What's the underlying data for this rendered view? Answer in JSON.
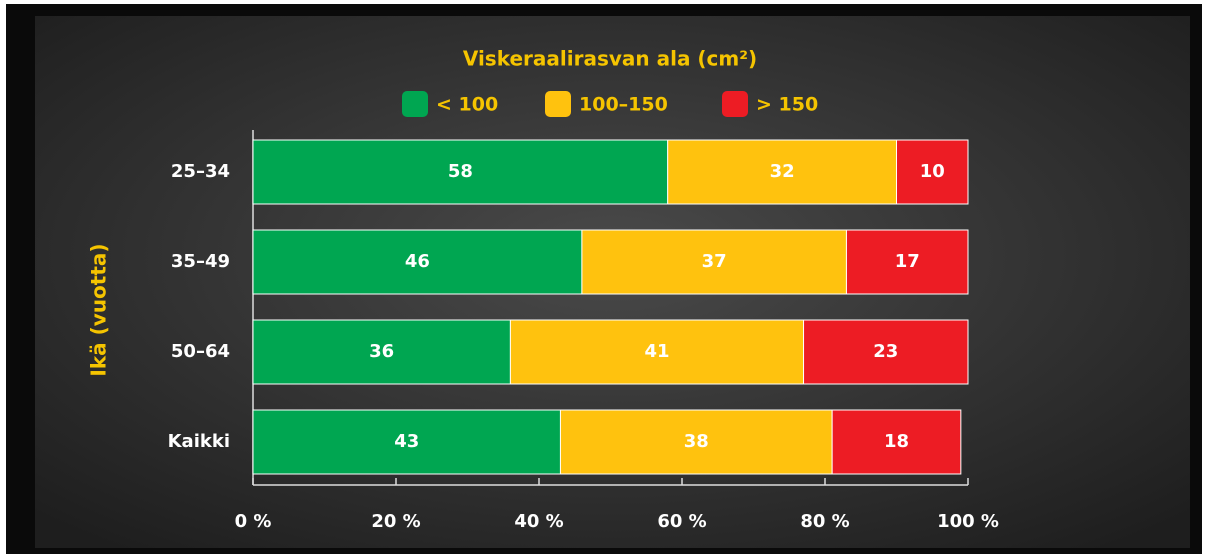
{
  "chart_data": {
    "type": "stacked-bar-horizontal",
    "title": "Viskeraalirasvan ala (cm²)",
    "y_label": "Ikä (vuotta)",
    "categories": [
      "25–34",
      "35–49",
      "50–64",
      "Kaikki"
    ],
    "series": [
      {
        "name": "< 100",
        "color": "#00a651",
        "values": [
          58,
          46,
          36,
          43
        ]
      },
      {
        "name": "100–150",
        "color": "#ffc20e",
        "values": [
          32,
          37,
          41,
          38
        ]
      },
      {
        "name": "> 150",
        "color": "#ed1c24",
        "values": [
          10,
          17,
          23,
          18
        ]
      }
    ],
    "xlim": [
      0,
      100
    ],
    "xticks": [
      {
        "value": 0,
        "label": "0 %"
      },
      {
        "value": 20,
        "label": "20 %"
      },
      {
        "value": 40,
        "label": "40 %"
      },
      {
        "value": 60,
        "label": "60 %"
      },
      {
        "value": 80,
        "label": "80 %"
      },
      {
        "value": 100,
        "label": "100 %"
      }
    ],
    "legend": "top"
  }
}
